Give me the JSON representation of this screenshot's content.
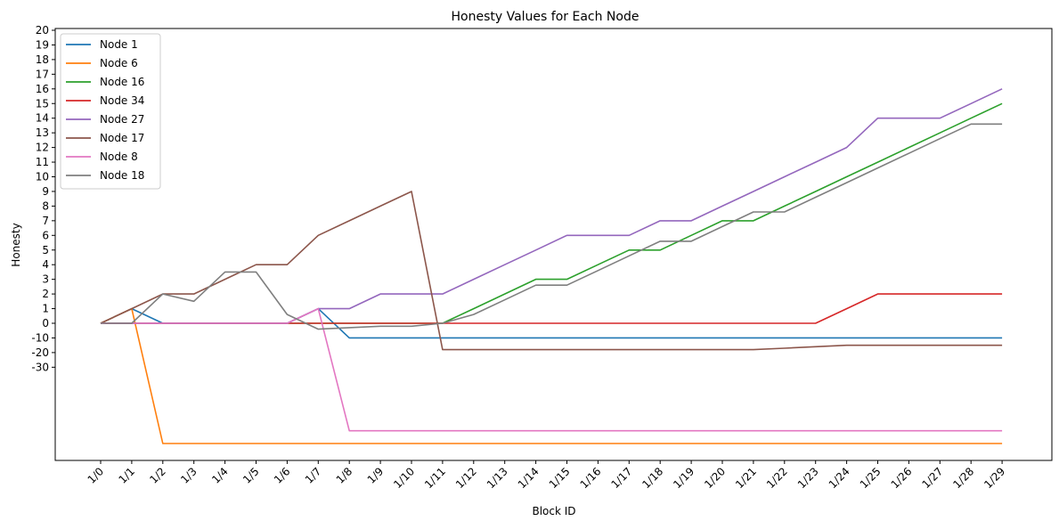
{
  "chart_data": {
    "type": "line",
    "title": "Honesty Values for Each Node",
    "xlabel": "Block ID",
    "ylabel": "Honesty",
    "categories": [
      "1/0",
      "1/1",
      "1/2",
      "1/3",
      "1/4",
      "1/5",
      "1/6",
      "1/7",
      "1/8",
      "1/9",
      "1/10",
      "1/11",
      "1/12",
      "1/13",
      "1/14",
      "1/15",
      "1/16",
      "1/17",
      "1/18",
      "1/19",
      "1/20",
      "1/21",
      "1/22",
      "1/23",
      "1/24",
      "1/25",
      "1/26",
      "1/27",
      "1/28",
      "1/29"
    ],
    "y_tick_labels": [
      "20",
      "19",
      "18",
      "17",
      "16",
      "15",
      "14",
      "13",
      "12",
      "11",
      "10",
      "9",
      "8",
      "7",
      "6",
      "5",
      "4",
      "3",
      "2",
      "1",
      "0",
      "-10",
      "-20",
      "-30"
    ],
    "grid": false,
    "legend_position": "top-left",
    "series": [
      {
        "name": "Node 1",
        "color": "#1f77b4",
        "values": [
          0,
          1,
          0,
          0,
          0,
          0,
          0,
          1,
          -10,
          -10,
          -10,
          -10,
          -10,
          -10,
          -10,
          -10,
          -10,
          -10,
          -10,
          -10,
          -10,
          -10,
          -10,
          -10,
          -10,
          -10,
          -10,
          -10,
          -10,
          -10
        ]
      },
      {
        "name": "Node 6",
        "color": "#ff7f0e",
        "values": [
          0,
          1,
          -90,
          -90,
          -90,
          -90,
          -90,
          -90,
          -90,
          -90,
          -90,
          -90,
          -90,
          -90,
          -90,
          -90,
          -90,
          -90,
          -90,
          -90,
          -90,
          -90,
          -90,
          -90,
          -90,
          -90,
          -90,
          -90,
          -90,
          -90
        ]
      },
      {
        "name": "Node 16",
        "color": "#2ca02c",
        "values": [
          0,
          0,
          0,
          0,
          0,
          0,
          0,
          0,
          0,
          0,
          0,
          0,
          1,
          2,
          3,
          3,
          4,
          5,
          5,
          6,
          7,
          7,
          8,
          9,
          10,
          11,
          12,
          13,
          14,
          15
        ]
      },
      {
        "name": "Node 34",
        "color": "#d62728",
        "values": [
          0,
          0,
          0,
          0,
          0,
          0,
          0,
          0,
          0,
          0,
          0,
          0,
          0,
          0,
          0,
          0,
          0,
          0,
          0,
          0,
          0,
          0,
          0,
          0,
          1,
          2,
          2,
          2,
          2,
          2
        ]
      },
      {
        "name": "Node 27",
        "color": "#9467bd",
        "values": [
          0,
          0,
          0,
          0,
          0,
          0,
          0,
          1,
          1,
          2,
          2,
          2,
          3,
          4,
          5,
          6,
          6,
          6,
          7,
          7,
          8,
          9,
          10,
          11,
          12,
          14,
          14,
          14,
          15,
          16
        ]
      },
      {
        "name": "Node 17",
        "color": "#8c564b",
        "values": [
          0,
          1,
          2,
          2,
          3,
          4,
          4,
          6,
          7,
          8,
          9,
          -18,
          -18,
          -18,
          -18,
          -18,
          -18,
          -18,
          -18,
          -18,
          -18,
          -18,
          -17,
          -16,
          -15,
          -15,
          -15,
          -15,
          -15,
          -15
        ]
      },
      {
        "name": "Node 8",
        "color": "#e377c2",
        "values": [
          0,
          0,
          0,
          0,
          0,
          0,
          0,
          1,
          -80,
          -80,
          -80,
          -80,
          -80,
          -80,
          -80,
          -80,
          -80,
          -80,
          -80,
          -80,
          -80,
          -80,
          -80,
          -80,
          -80,
          -80,
          -80,
          -80,
          -80,
          -80
        ]
      },
      {
        "name": "Node 18",
        "color": "#7f7f7f",
        "values": [
          0,
          0,
          2,
          1.5,
          3.5,
          3.5,
          0.6,
          -4,
          -3,
          -2,
          -2,
          0,
          0.6,
          1.6,
          2.6,
          2.6,
          3.6,
          4.6,
          5.6,
          5.6,
          6.6,
          7.6,
          7.6,
          8.6,
          9.6,
          10.6,
          11.6,
          12.6,
          13.6,
          13.6
        ]
      }
    ]
  }
}
